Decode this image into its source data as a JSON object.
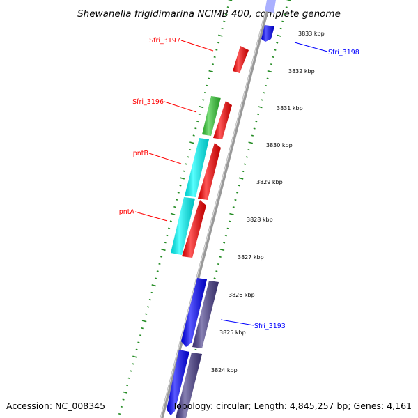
{
  "title": "Shewanella frigidimarina NCIMB 400, complete genome",
  "footer": {
    "accession": "Accession: NC_008345",
    "topology": "Topology: circular; Length: 4,845,257 bp; Genes: 4,161"
  },
  "colors": {
    "backbone": "#999999",
    "tick_green": "#228B22",
    "gene_red": "#ff0000",
    "gene_green": "#33cc33",
    "gene_cyan": "#00ffff",
    "gene_blue": "#0000ff",
    "gene_slate": "#483d8b",
    "label_red": "#ff0000",
    "label_blue": "#0000ff"
  },
  "scale": {
    "unit": "kbp",
    "ticks": [
      "3824 kbp",
      "3825 kbp",
      "3826 kbp",
      "3827 kbp",
      "3828 kbp",
      "3829 kbp",
      "3830 kbp",
      "3831 kbp",
      "3832 kbp",
      "3833 kbp"
    ]
  },
  "gene_labels": [
    {
      "text": "Sfri_3197",
      "color": "red"
    },
    {
      "text": "Sfri_3196",
      "color": "red"
    },
    {
      "text": "pntB",
      "color": "red"
    },
    {
      "text": "pntA",
      "color": "red"
    },
    {
      "text": "Sfri_3198",
      "color": "blue"
    },
    {
      "text": "Sfri_3193",
      "color": "blue"
    }
  ]
}
